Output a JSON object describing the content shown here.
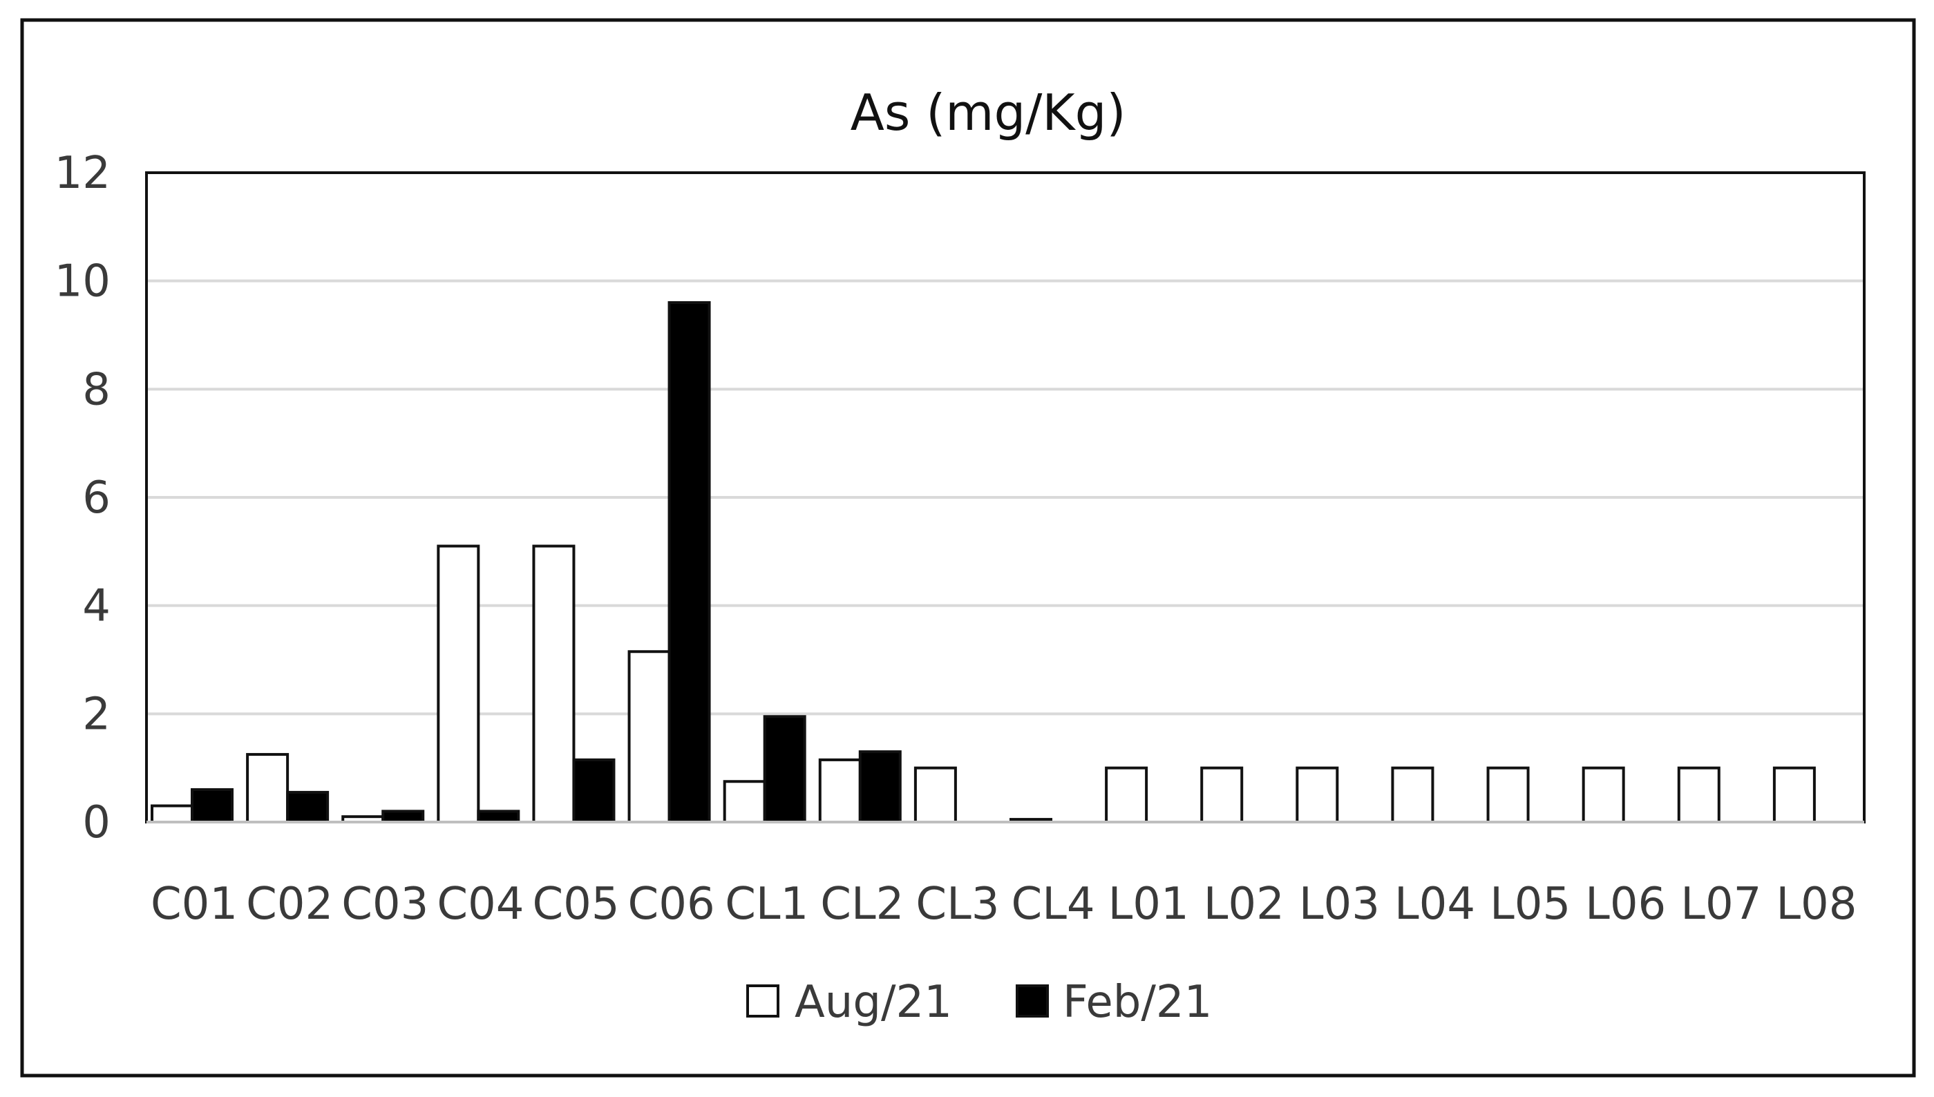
{
  "chart_data": {
    "type": "bar",
    "title": "As (mg/Kg)",
    "xlabel": "",
    "ylabel": "",
    "ylim": [
      0,
      12
    ],
    "yticks": [
      "0",
      "2",
      "4",
      "6",
      "8",
      "10",
      "12"
    ],
    "grid": true,
    "legend_position": "bottom",
    "categories": [
      "C01",
      "C02",
      "C03",
      "C04",
      "C05",
      "C06",
      "CL1",
      "CL2",
      "CL3",
      "CL4",
      "L01",
      "L02",
      "L03",
      "L04",
      "L05",
      "L06",
      "L07",
      "L08"
    ],
    "series": [
      {
        "name": "Aug/21",
        "color": "#ffffff",
        "values": [
          0.3,
          1.25,
          0.1,
          5.1,
          5.1,
          3.15,
          0.75,
          1.15,
          1.0,
          0.05,
          1.0,
          1.0,
          1.0,
          1.0,
          1.0,
          1.0,
          1.0,
          1.0
        ]
      },
      {
        "name": "Feb/21",
        "color": "#000000",
        "values": [
          0.6,
          0.55,
          0.2,
          0.2,
          1.15,
          9.6,
          1.95,
          1.3,
          null,
          null,
          null,
          null,
          null,
          null,
          null,
          null,
          null,
          null
        ]
      }
    ]
  }
}
